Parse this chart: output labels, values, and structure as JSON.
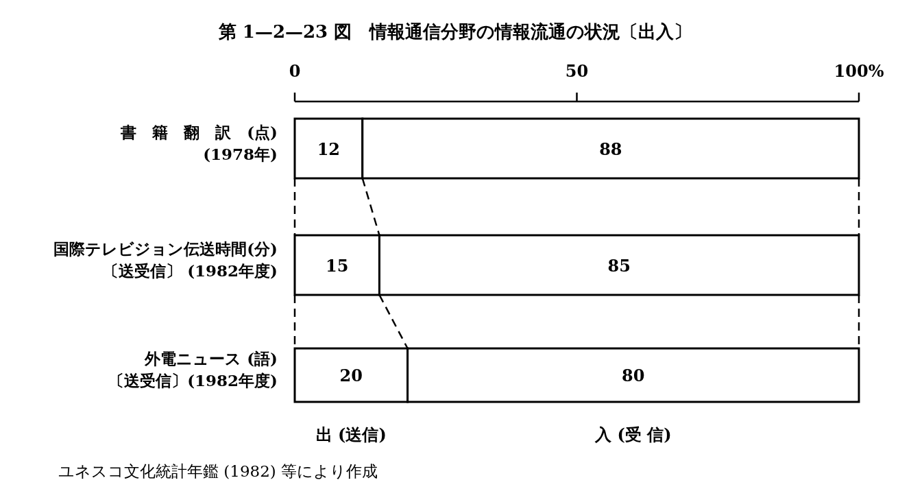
{
  "chart_data": {
    "type": "bar",
    "orientation": "horizontal",
    "stacked": true,
    "title": "第 1—2—23 図　情報通信分野の情報流通の状況〔出入〕",
    "categories": [
      "書　籍　翻　訳　(点)\n(1978年)",
      "国際テレビジョン伝送時間(分)\n〔送受信〕 (1982年度)",
      "外電ニュース (語)\n〔送受信〕(1982年度)"
    ],
    "series": [
      {
        "name": "出 (送信)",
        "color": "#ffffff",
        "values": [
          12,
          15,
          20
        ]
      },
      {
        "name": "入 (受 信)",
        "color": "#ffffff",
        "values": [
          88,
          85,
          80
        ]
      }
    ],
    "xlim": [
      0,
      100
    ],
    "xticks": [
      0,
      50,
      {
        "value": 100,
        "label": "100%"
      }
    ],
    "data_labels": true,
    "annotations": [
      "ユネスコ文化統計年鑑 (1982) 等により作成"
    ]
  }
}
